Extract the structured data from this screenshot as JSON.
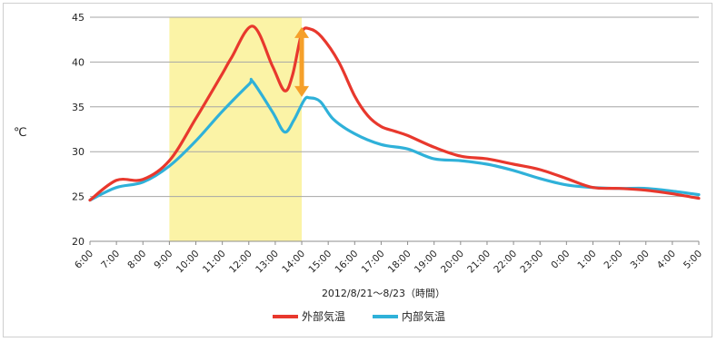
{
  "chart_data": {
    "type": "line",
    "ylabel": "℃",
    "xlabel": "2012/8/21～8/23（時間）",
    "ylim": [
      20,
      45
    ],
    "yticks": [
      20,
      25,
      30,
      35,
      40,
      45
    ],
    "grid": "horizontal",
    "legend_placement": "bottom-center",
    "categories": [
      "6:00",
      "7:00",
      "8:00",
      "9:00",
      "10:00",
      "11:00",
      "12:00",
      "13:00",
      "14:00",
      "15:00",
      "16:00",
      "17:00",
      "18:00",
      "19:00",
      "20:00",
      "21:00",
      "22:00",
      "23:00",
      "0:00",
      "1:00",
      "2:00",
      "3:00",
      "4:00",
      "5:00"
    ],
    "highlight": {
      "from": "9:00",
      "to": "14:00",
      "color": "#fbf3a6"
    },
    "arrow": {
      "at": "14:00",
      "from_value": 36,
      "to_value": 44,
      "color": "#f5a02a"
    },
    "series": [
      {
        "name": "外部気温",
        "color": "#e8382d",
        "x": [
          0,
          1,
          2,
          3,
          4,
          5,
          5.35,
          6.15,
          6.9,
          7.35,
          7.65,
          8.0,
          8.3,
          8.75,
          9.4,
          10,
          10.5,
          11,
          11.5,
          12,
          13,
          14,
          15,
          16,
          17,
          18,
          19,
          20,
          21,
          22,
          23
        ],
        "values": [
          24.6,
          26.8,
          26.9,
          29.0,
          33.7,
          38.7,
          40.5,
          44.0,
          39.5,
          36.8,
          38.5,
          43.2,
          43.7,
          42.8,
          40.0,
          36.2,
          34.0,
          32.8,
          32.3,
          31.8,
          30.5,
          29.5,
          29.2,
          28.6,
          28.0,
          27.0,
          26.0,
          25.9,
          25.7,
          25.3,
          24.8
        ]
      },
      {
        "name": "内部気温",
        "color": "#2fb1d9",
        "x": [
          0,
          1,
          2,
          3,
          4,
          5,
          6,
          6.15,
          6.9,
          7.35,
          7.7,
          8.1,
          8.3,
          8.7,
          9.2,
          10,
          11,
          12,
          13,
          14,
          15,
          16,
          17,
          18,
          19,
          20,
          21,
          22,
          23
        ],
        "values": [
          24.6,
          26.0,
          26.6,
          28.4,
          31.2,
          34.5,
          37.5,
          37.8,
          34.4,
          32.2,
          33.5,
          35.8,
          36.0,
          35.6,
          33.6,
          32.0,
          30.8,
          30.3,
          29.2,
          29.0,
          28.6,
          27.9,
          27.0,
          26.3,
          26.0,
          25.9,
          25.9,
          25.6,
          25.2
        ]
      }
    ]
  }
}
